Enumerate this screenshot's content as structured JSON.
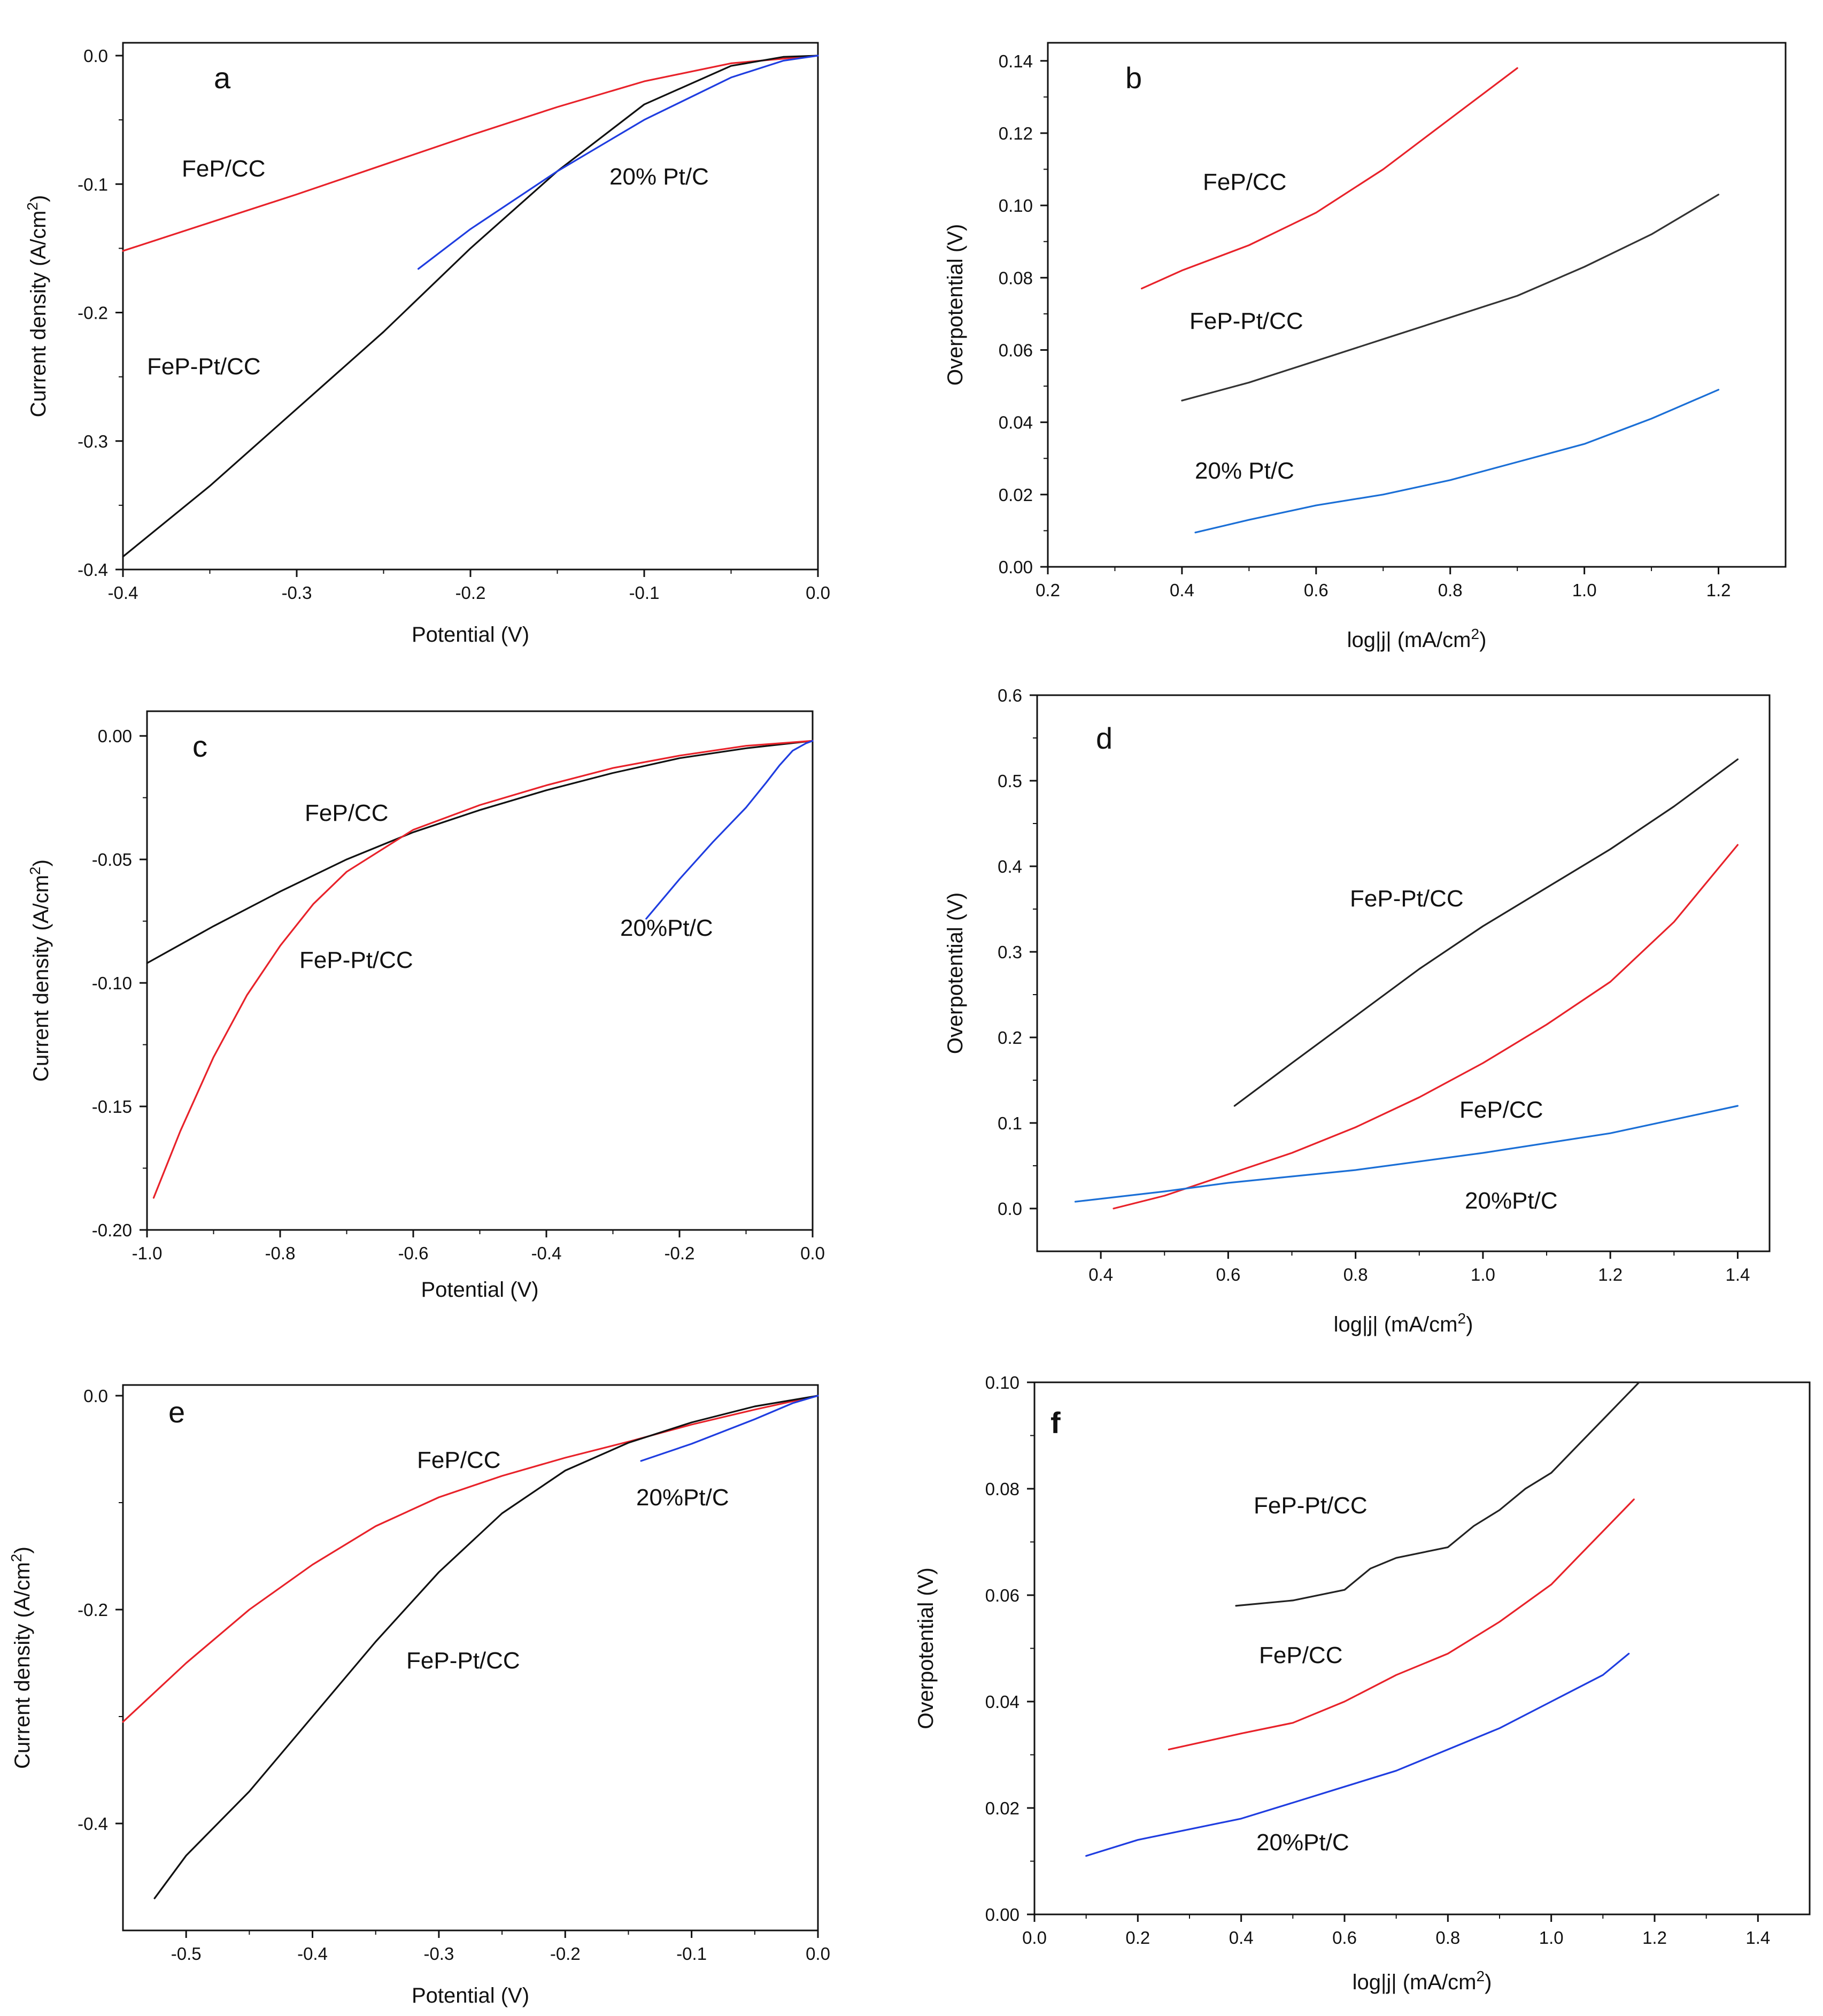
{
  "chart_data": [
    {
      "panel": "a",
      "type": "line",
      "xlabel": "Potential (V)",
      "ylabel": "Current density (A/cm2)",
      "xlim": [
        -0.4,
        0.0
      ],
      "ylim": [
        -0.4,
        0.01
      ],
      "xticks": [
        -0.4,
        -0.3,
        -0.2,
        -0.1,
        0.0
      ],
      "xtick_labels": [
        "-0.4",
        "-0.3",
        "-0.2",
        "-0.1",
        "0.0"
      ],
      "yticks": [
        -0.4,
        -0.3,
        -0.2,
        -0.1,
        0.0
      ],
      "ytick_labels": [
        "-0.4",
        "-0.3",
        "-0.2",
        "-0.1",
        "0.0"
      ],
      "series": [
        {
          "name": "FeP/CC",
          "color": "#e8222a",
          "x": [
            -0.4,
            -0.35,
            -0.3,
            -0.25,
            -0.2,
            -0.15,
            -0.1,
            -0.05,
            0.0
          ],
          "y": [
            -0.152,
            -0.13,
            -0.108,
            -0.085,
            -0.062,
            -0.04,
            -0.02,
            -0.006,
            0.0
          ]
        },
        {
          "name": "FeP-Pt/CC",
          "color": "#111111",
          "x": [
            -0.4,
            -0.35,
            -0.3,
            -0.25,
            -0.2,
            -0.15,
            -0.1,
            -0.05,
            -0.02,
            0.0
          ],
          "y": [
            -0.39,
            -0.335,
            -0.275,
            -0.215,
            -0.15,
            -0.09,
            -0.038,
            -0.008,
            -0.001,
            0.0
          ]
        },
        {
          "name": "20% Pt/C",
          "color": "#1f3de0",
          "x": [
            -0.23,
            -0.2,
            -0.15,
            -0.1,
            -0.05,
            -0.02,
            0.0
          ],
          "y": [
            -0.166,
            -0.135,
            -0.09,
            -0.05,
            -0.017,
            -0.004,
            0.0
          ]
        }
      ]
    },
    {
      "panel": "b",
      "type": "line",
      "xlabel": "log|j| (mA/cm2)",
      "ylabel": "Overpotential (V)",
      "xlim": [
        0.2,
        1.3
      ],
      "ylim": [
        0.0,
        0.145
      ],
      "xticks": [
        0.2,
        0.4,
        0.6,
        0.8,
        1.0,
        1.2
      ],
      "xtick_labels": [
        "0.2",
        "0.4",
        "0.6",
        "0.8",
        "1.0",
        "1.2"
      ],
      "yticks": [
        0.0,
        0.02,
        0.04,
        0.06,
        0.08,
        0.1,
        0.12,
        0.14
      ],
      "ytick_labels": [
        "0.00",
        "0.02",
        "0.04",
        "0.06",
        "0.08",
        "0.10",
        "0.12",
        "0.14"
      ],
      "series": [
        {
          "name": "FeP/CC",
          "color": "#e8222a",
          "x": [
            0.34,
            0.4,
            0.5,
            0.6,
            0.7,
            0.8,
            0.9
          ],
          "y": [
            0.077,
            0.082,
            0.089,
            0.098,
            0.11,
            0.124,
            0.138
          ]
        },
        {
          "name": "FeP-Pt/CC",
          "color": "#333333",
          "x": [
            0.4,
            0.5,
            0.6,
            0.7,
            0.8,
            0.9,
            1.0,
            1.1,
            1.2
          ],
          "y": [
            0.046,
            0.051,
            0.057,
            0.063,
            0.069,
            0.075,
            0.083,
            0.092,
            0.103
          ]
        },
        {
          "name": "20% Pt/C",
          "color": "#1b6fd6",
          "x": [
            0.42,
            0.5,
            0.6,
            0.7,
            0.8,
            0.9,
            1.0,
            1.1,
            1.2
          ],
          "y": [
            0.0095,
            0.013,
            0.017,
            0.02,
            0.024,
            0.029,
            0.034,
            0.041,
            0.049
          ]
        }
      ]
    },
    {
      "panel": "c",
      "type": "line",
      "xlabel": "Potential (V)",
      "ylabel": "Current density (A/cm2)",
      "xlim": [
        -1.0,
        0.0
      ],
      "ylim": [
        -0.2,
        0.01
      ],
      "xticks": [
        -1.0,
        -0.8,
        -0.6,
        -0.4,
        -0.2,
        0.0
      ],
      "xtick_labels": [
        "-1.0",
        "-0.8",
        "-0.6",
        "-0.4",
        "-0.2",
        "0.0"
      ],
      "yticks": [
        -0.2,
        -0.15,
        -0.1,
        -0.05,
        0.0
      ],
      "ytick_labels": [
        "-0.20",
        "-0.15",
        "-0.10",
        "-0.05",
        "0.00"
      ],
      "series": [
        {
          "name": "FeP/CC",
          "color": "#111111",
          "x": [
            -1.0,
            -0.9,
            -0.8,
            -0.7,
            -0.6,
            -0.5,
            -0.4,
            -0.3,
            -0.2,
            -0.1,
            0.0
          ],
          "y": [
            -0.092,
            -0.077,
            -0.063,
            -0.05,
            -0.039,
            -0.03,
            -0.022,
            -0.015,
            -0.009,
            -0.005,
            -0.002
          ]
        },
        {
          "name": "FeP-Pt/CC",
          "color": "#e8222a",
          "x": [
            -0.99,
            -0.95,
            -0.9,
            -0.85,
            -0.8,
            -0.75,
            -0.7,
            -0.6,
            -0.5,
            -0.4,
            -0.3,
            -0.2,
            -0.1,
            0.0
          ],
          "y": [
            -0.187,
            -0.16,
            -0.13,
            -0.105,
            -0.085,
            -0.068,
            -0.055,
            -0.038,
            -0.028,
            -0.02,
            -0.013,
            -0.008,
            -0.004,
            -0.002
          ]
        },
        {
          "name": "20%Pt/C",
          "color": "#1f3de0",
          "x": [
            -0.25,
            -0.2,
            -0.15,
            -0.1,
            -0.07,
            -0.05,
            -0.03,
            -0.01,
            0.0
          ],
          "y": [
            -0.074,
            -0.058,
            -0.043,
            -0.029,
            -0.019,
            -0.012,
            -0.006,
            -0.003,
            -0.002
          ]
        }
      ]
    },
    {
      "panel": "d",
      "type": "line",
      "xlabel": "log|j| (mA/cm2)",
      "ylabel": "Overpotential (V)",
      "xlim": [
        0.3,
        1.45
      ],
      "ylim": [
        -0.05,
        0.6
      ],
      "xticks": [
        0.4,
        0.6,
        0.8,
        1.0,
        1.2,
        1.4
      ],
      "xtick_labels": [
        "0.4",
        "0.6",
        "0.8",
        "1.0",
        "1.2",
        "1.4"
      ],
      "yticks": [
        0.0,
        0.1,
        0.2,
        0.3,
        0.4,
        0.5,
        0.6
      ],
      "ytick_labels": [
        "0.0",
        "0.1",
        "0.2",
        "0.3",
        "0.4",
        "0.5",
        "0.6"
      ],
      "series": [
        {
          "name": "FeP-Pt/CC",
          "color": "#222222",
          "x": [
            0.61,
            0.7,
            0.8,
            0.9,
            1.0,
            1.1,
            1.2,
            1.3,
            1.4
          ],
          "y": [
            0.12,
            0.17,
            0.225,
            0.28,
            0.33,
            0.375,
            0.42,
            0.47,
            0.525
          ]
        },
        {
          "name": "FeP/CC",
          "color": "#e8222a",
          "x": [
            0.42,
            0.5,
            0.6,
            0.7,
            0.8,
            0.9,
            1.0,
            1.1,
            1.2,
            1.3,
            1.4
          ],
          "y": [
            0.0,
            0.015,
            0.04,
            0.065,
            0.095,
            0.13,
            0.17,
            0.215,
            0.265,
            0.335,
            0.425
          ]
        },
        {
          "name": "20%Pt/C",
          "color": "#1b6fd6",
          "x": [
            0.36,
            0.5,
            0.6,
            0.8,
            1.0,
            1.2,
            1.4
          ],
          "y": [
            0.008,
            0.02,
            0.03,
            0.045,
            0.065,
            0.088,
            0.12
          ]
        }
      ]
    },
    {
      "panel": "e",
      "type": "line",
      "xlabel": "Potential (V)",
      "ylabel": "Current density (A/cm2)",
      "xlim": [
        -0.55,
        0.0
      ],
      "ylim": [
        -0.5,
        0.01
      ],
      "xticks": [
        -0.5,
        -0.4,
        -0.3,
        -0.2,
        -0.1,
        0.0
      ],
      "xtick_labels": [
        "-0.5",
        "-0.4",
        "-0.3",
        "-0.2",
        "-0.1",
        "0.0"
      ],
      "yticks": [
        -0.4,
        -0.2,
        0.0
      ],
      "ytick_labels": [
        "-0.4",
        "-0.2",
        "0.0"
      ],
      "series": [
        {
          "name": "FeP/CC",
          "color": "#e8222a",
          "x": [
            -0.55,
            -0.5,
            -0.45,
            -0.4,
            -0.35,
            -0.3,
            -0.25,
            -0.2,
            -0.15,
            -0.1,
            -0.05,
            0.0
          ],
          "y": [
            -0.305,
            -0.25,
            -0.2,
            -0.158,
            -0.122,
            -0.095,
            -0.075,
            -0.058,
            -0.043,
            -0.027,
            -0.013,
            0.0
          ]
        },
        {
          "name": "FeP-Pt/CC",
          "color": "#111111",
          "x": [
            -0.525,
            -0.5,
            -0.45,
            -0.4,
            -0.35,
            -0.3,
            -0.25,
            -0.2,
            -0.15,
            -0.1,
            -0.05,
            0.0
          ],
          "y": [
            -0.47,
            -0.43,
            -0.37,
            -0.3,
            -0.23,
            -0.165,
            -0.11,
            -0.07,
            -0.044,
            -0.025,
            -0.01,
            0.0
          ]
        },
        {
          "name": "20%Pt/C",
          "color": "#1f3de0",
          "x": [
            -0.14,
            -0.1,
            -0.05,
            -0.02,
            0.0
          ],
          "y": [
            -0.061,
            -0.045,
            -0.022,
            -0.007,
            0.0
          ]
        }
      ]
    },
    {
      "panel": "f",
      "type": "line",
      "xlabel": "log|j| (mA/cm2)",
      "ylabel": "Overpotential (V)",
      "xlim": [
        0.0,
        1.5
      ],
      "ylim": [
        0.0,
        0.1
      ],
      "xticks": [
        0.0,
        0.2,
        0.4,
        0.6,
        0.8,
        1.0,
        1.2,
        1.4
      ],
      "xtick_labels": [
        "0.0",
        "0.2",
        "0.4",
        "0.6",
        "0.8",
        "1.0",
        "1.2",
        "1.4"
      ],
      "yticks": [
        0.0,
        0.02,
        0.04,
        0.06,
        0.08,
        0.1
      ],
      "ytick_labels": [
        "0.00",
        "0.02",
        "0.04",
        "0.06",
        "0.08",
        "0.10"
      ],
      "series": [
        {
          "name": "FeP-Pt/CC",
          "color": "#222222",
          "x": [
            0.39,
            0.5,
            0.6,
            0.65,
            0.7,
            0.8,
            0.85,
            0.9,
            0.95,
            1.0,
            1.05,
            1.1,
            1.17
          ],
          "y": [
            0.058,
            0.059,
            0.061,
            0.065,
            0.067,
            0.069,
            0.073,
            0.076,
            0.08,
            0.083,
            0.088,
            0.093,
            0.1
          ]
        },
        {
          "name": "FeP/CC",
          "color": "#e8222a",
          "x": [
            0.26,
            0.4,
            0.5,
            0.6,
            0.7,
            0.8,
            0.9,
            1.0,
            1.05,
            1.1,
            1.16
          ],
          "y": [
            0.031,
            0.034,
            0.036,
            0.04,
            0.045,
            0.049,
            0.055,
            0.062,
            0.067,
            0.072,
            0.078
          ]
        },
        {
          "name": "20%Pt/C",
          "color": "#1f3de0",
          "x": [
            0.1,
            0.2,
            0.3,
            0.4,
            0.5,
            0.6,
            0.7,
            0.8,
            0.9,
            1.0,
            1.1,
            1.15
          ],
          "y": [
            0.011,
            0.014,
            0.016,
            0.018,
            0.021,
            0.024,
            0.027,
            0.031,
            0.035,
            0.04,
            0.045,
            0.049
          ]
        }
      ]
    }
  ],
  "panel_labels": [
    "a",
    "b",
    "c",
    "d",
    "e",
    "f"
  ]
}
